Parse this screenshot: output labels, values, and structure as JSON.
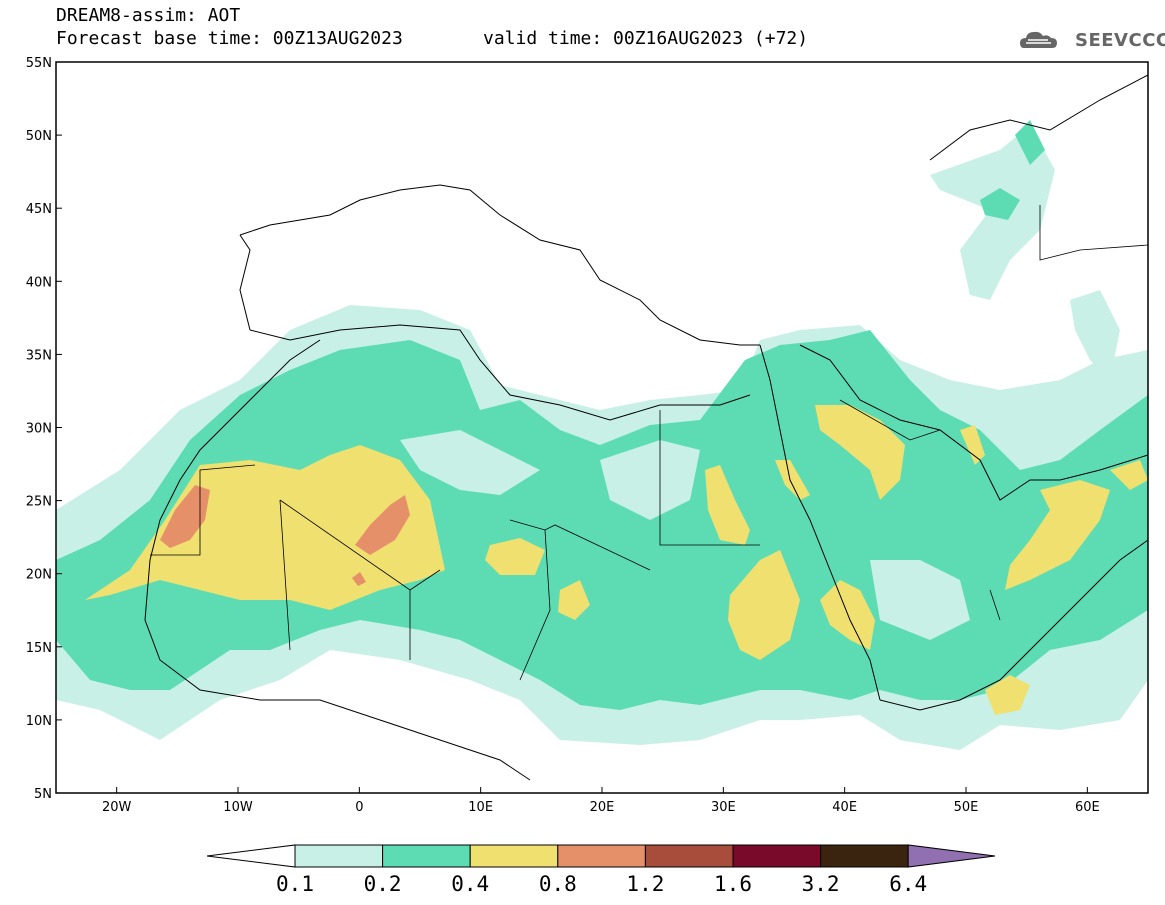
{
  "header": {
    "title": "DREAM8-assim: AOT",
    "base_time": "Forecast base time: 00Z13AUG2023",
    "valid_time": "valid time: 00Z16AUG2023 (+72)",
    "logo": "SEEVCCC",
    "logo_icon": "cloud-icon"
  },
  "map": {
    "projection": "lat-lon",
    "lon_range": [
      -25,
      65
    ],
    "lat_range": [
      5,
      55
    ],
    "lat_ticks": [
      "5N",
      "10N",
      "15N",
      "20N",
      "25N",
      "30N",
      "35N",
      "40N",
      "45N",
      "50N",
      "55N"
    ],
    "lon_ticks": [
      "20W",
      "10W",
      "0",
      "10E",
      "20E",
      "30E",
      "40E",
      "50E",
      "60E"
    ]
  },
  "legend": {
    "levels": [
      "0.1",
      "0.2",
      "0.4",
      "0.8",
      "1.2",
      "1.6",
      "3.2",
      "6.4"
    ],
    "colors": [
      "#c8f0e6",
      "#5ddcb4",
      "#f0e070",
      "#e6906a",
      "#a84c3c",
      "#7a0a2a",
      "#3a2410",
      "#9070b0"
    ],
    "under_color": "#ffffff"
  }
}
